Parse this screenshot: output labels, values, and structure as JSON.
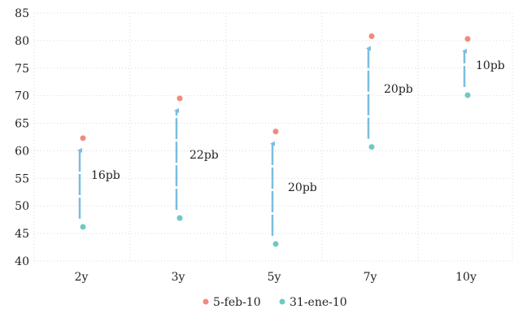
{
  "chart_data": {
    "type": "scatter",
    "title": "",
    "xlabel": "",
    "ylabel": "",
    "categories": [
      "2y",
      "3y",
      "5y",
      "7y",
      "10y"
    ],
    "ylim": [
      40,
      85
    ],
    "yticks": [
      40,
      45,
      50,
      55,
      60,
      65,
      70,
      75,
      80,
      85
    ],
    "grid": true,
    "legend_position": "bottom",
    "series": [
      {
        "name": "5-feb-10",
        "color": "#f08a7e",
        "values": [
          62.3,
          69.5,
          63.5,
          80.8,
          80.3
        ]
      },
      {
        "name": "31-ene-10",
        "color": "#6ecac4",
        "values": [
          46.2,
          47.8,
          43.1,
          60.7,
          70.1
        ]
      }
    ],
    "arrow_color": "#7bbde0",
    "annotations": [
      "16pb",
      "22pb",
      "20pb",
      "20pb",
      "10pb"
    ]
  }
}
